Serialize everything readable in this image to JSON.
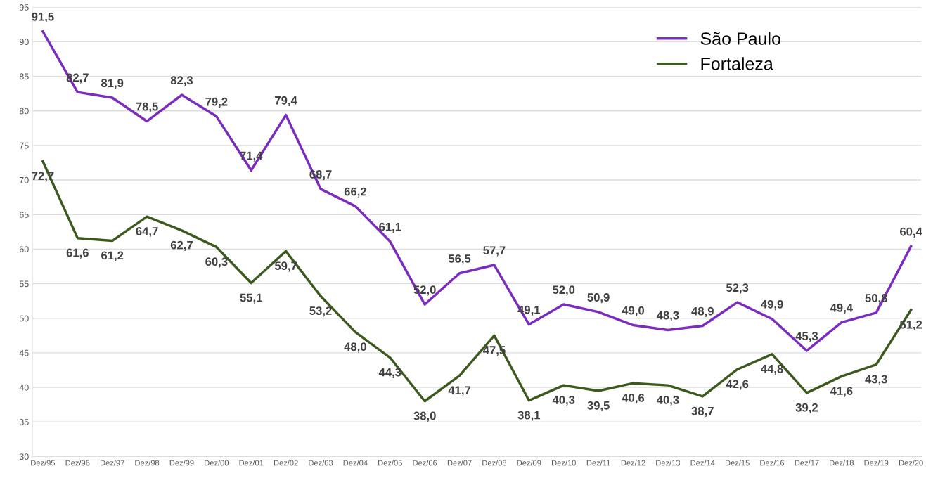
{
  "chart_data": {
    "type": "line",
    "categories": [
      "Dez/95",
      "Dez/96",
      "Dez/97",
      "Dez/98",
      "Dez/99",
      "Dez/00",
      "Dez/01",
      "Dez/02",
      "Dez/03",
      "Dez/04",
      "Dez/05",
      "Dez/06",
      "Dez/07",
      "Dez/08",
      "Dez/09",
      "Dez/10",
      "Dez/11",
      "Dez/12",
      "Dez/13",
      "Dez/14",
      "Dez/15",
      "Dez/16",
      "Dez/17",
      "Dez/18",
      "Dez/19",
      "Dez/20"
    ],
    "series": [
      {
        "name": "São Paulo",
        "color": "#7b2cbf",
        "values": [
          91.5,
          82.7,
          81.9,
          78.5,
          82.3,
          79.2,
          71.4,
          79.4,
          68.7,
          66.2,
          61.1,
          52.0,
          56.5,
          57.7,
          49.1,
          52.0,
          50.9,
          49.0,
          48.3,
          48.9,
          52.3,
          49.9,
          45.3,
          49.4,
          50.8,
          60.4
        ],
        "value_labels": [
          "91,5",
          "82,7",
          "81,9",
          "78,5",
          "82,3",
          "79,2",
          "71,4",
          "79,4",
          "68,7",
          "66,2",
          "61,1",
          "52,0",
          "56,5",
          "57,7",
          "49,1",
          "52,0",
          "50,9",
          "49,0",
          "48,3",
          "48,9",
          "52,3",
          "49,9",
          "45,3",
          "49,4",
          "50,8",
          "60,4"
        ]
      },
      {
        "name": "Fortaleza",
        "color": "#3d5a1e",
        "values": [
          72.7,
          61.6,
          61.2,
          64.7,
          62.7,
          60.3,
          55.1,
          59.7,
          53.2,
          48.0,
          44.3,
          38.0,
          41.7,
          47.5,
          38.1,
          40.3,
          39.5,
          40.6,
          40.3,
          38.7,
          42.6,
          44.8,
          39.2,
          41.6,
          43.3,
          51.2
        ],
        "value_labels": [
          "72,7",
          "61,6",
          "61,2",
          "64,7",
          "62,7",
          "60,3",
          "55,1",
          "59,7",
          "53,2",
          "48,0",
          "44,3",
          "38,0",
          "41,7",
          "47,5",
          "38,1",
          "40,3",
          "39,5",
          "40,6",
          "40,3",
          "38,7",
          "42,6",
          "44,8",
          "39,2",
          "41,6",
          "43,3",
          "51,2"
        ]
      }
    ],
    "ylim": [
      30,
      95
    ],
    "yticks": [
      30,
      35,
      40,
      45,
      50,
      55,
      60,
      65,
      70,
      75,
      80,
      85,
      90,
      95
    ],
    "grid": "y",
    "legend": "top right",
    "marker": "none",
    "line_style": "solid"
  }
}
